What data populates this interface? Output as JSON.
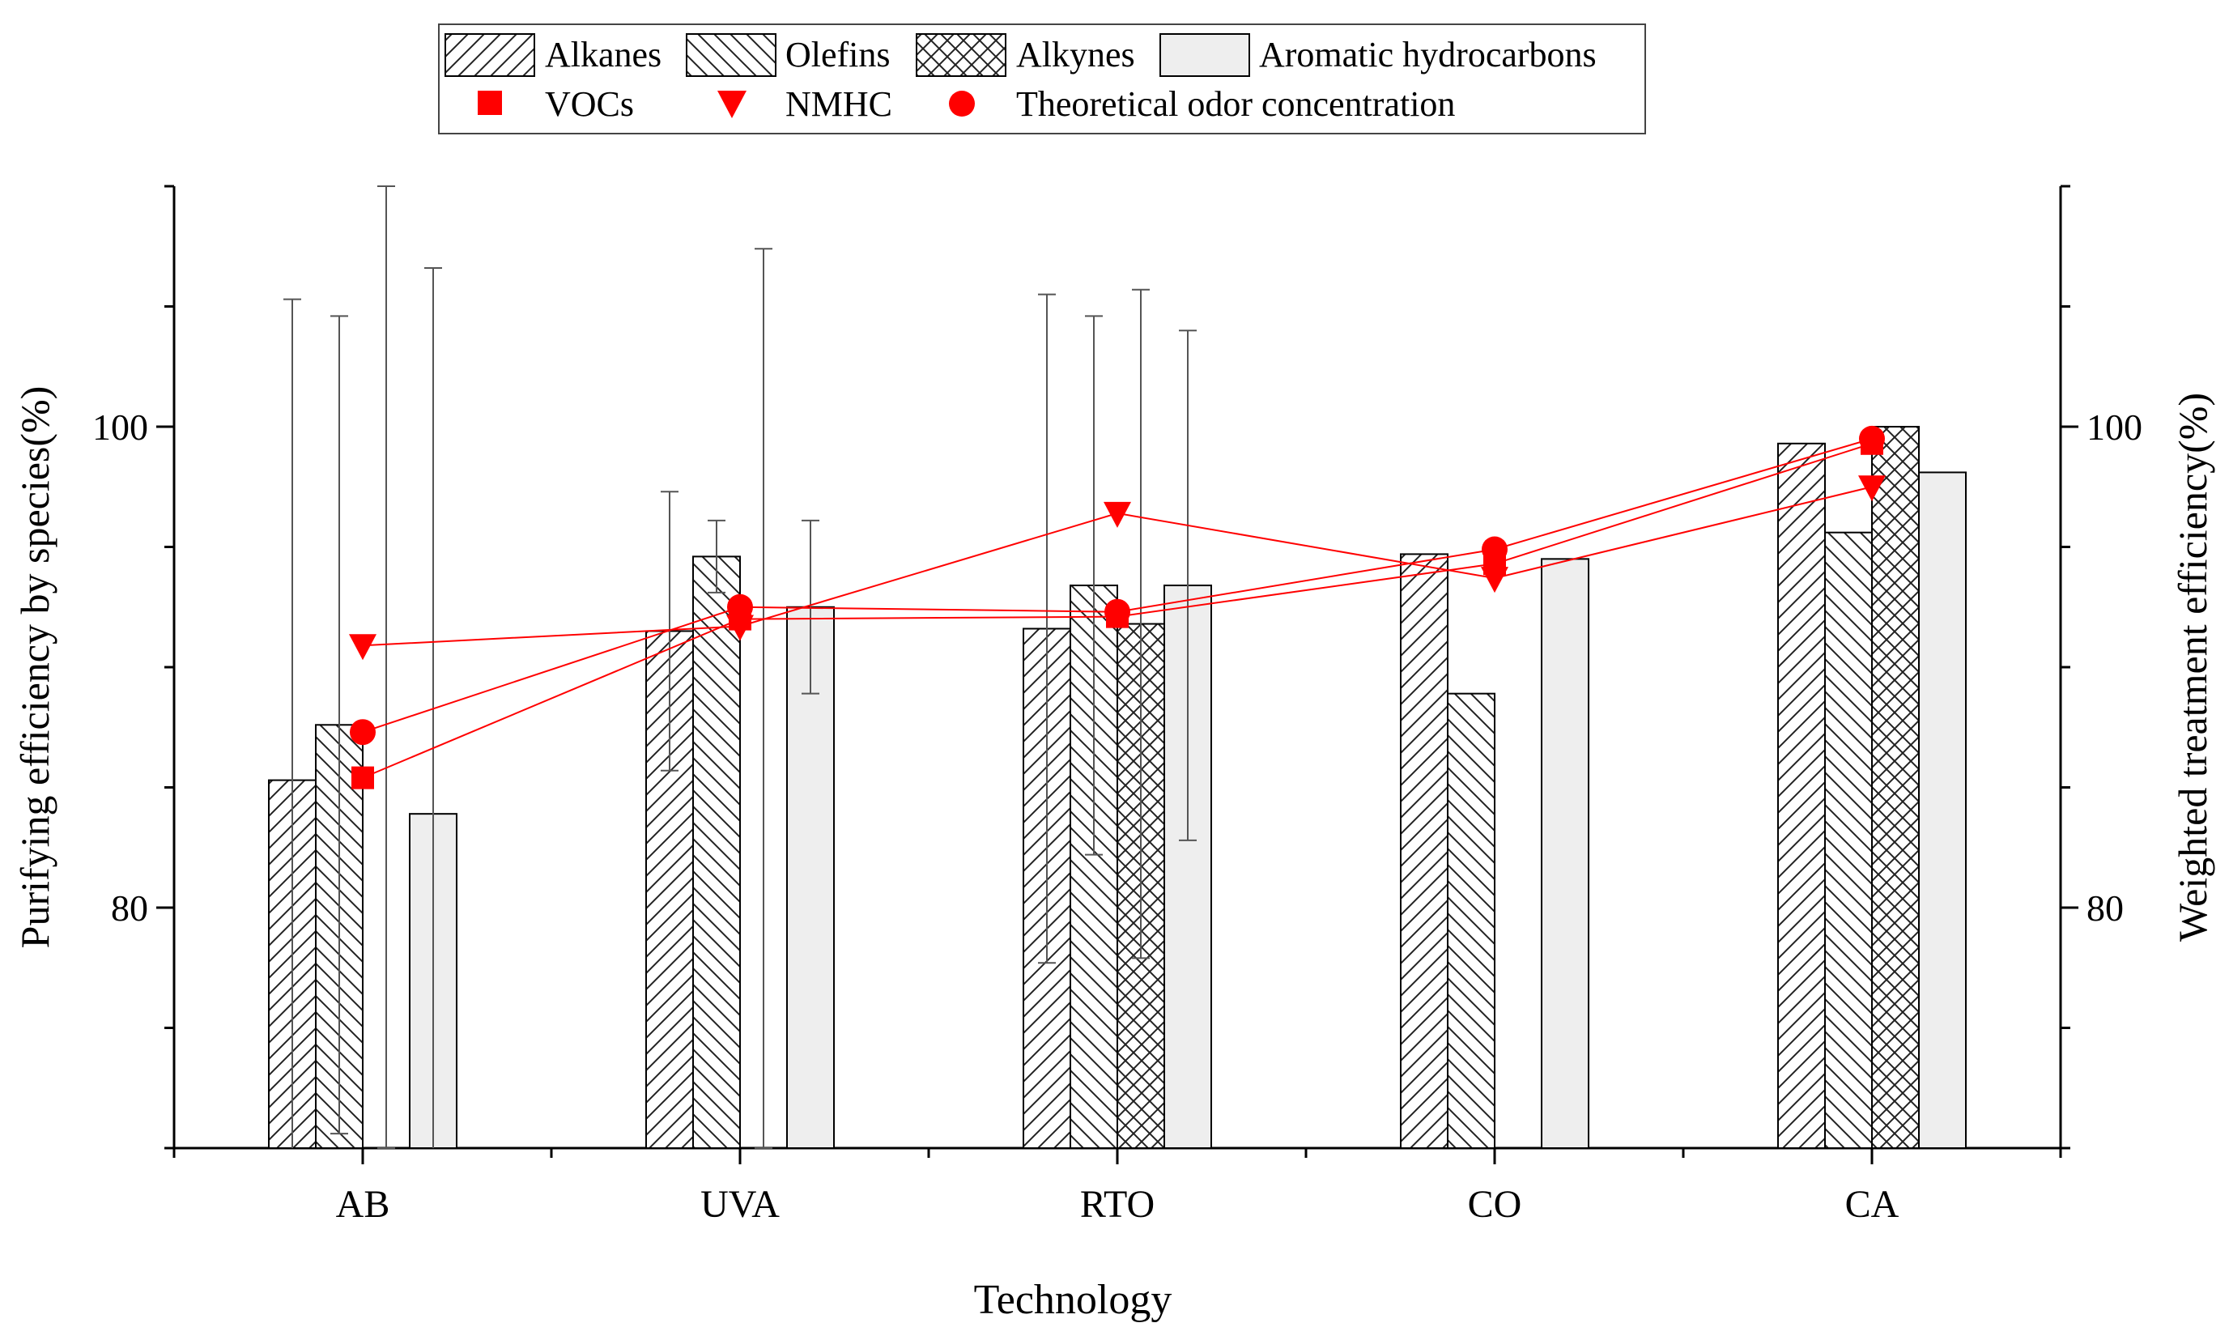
{
  "chart_data": {
    "type": "bar",
    "xlabel": "Technology",
    "ylabel": "Purifying efficiency by species(%)",
    "y2label": "Weighted treatment efficiency(%)",
    "ylim": [
      70,
      110
    ],
    "y2lim": [
      70,
      110
    ],
    "yticks": [
      80,
      100
    ],
    "y2ticks": [
      80,
      100
    ],
    "categories": [
      "AB",
      "UVA",
      "RTO",
      "CO",
      "CA"
    ],
    "bar_series": [
      {
        "name": "Alkanes",
        "pattern": "forward-hatch",
        "values": [
          85.3,
          91.5,
          91.6,
          94.7,
          99.3
        ],
        "errors": [
          20.0,
          5.8,
          13.9,
          null,
          null
        ]
      },
      {
        "name": "Olefins",
        "pattern": "back-hatch",
        "values": [
          87.6,
          94.6,
          93.4,
          88.9,
          95.6
        ],
        "errors": [
          17.0,
          1.5,
          11.2,
          null,
          null
        ]
      },
      {
        "name": "Alkynes",
        "pattern": "cross-hatch",
        "values": [
          null,
          null,
          91.8,
          null,
          100.0
        ],
        "errors": [
          null,
          null,
          13.9,
          null,
          null
        ]
      },
      {
        "name": "Aromatic hydrocarbons",
        "pattern": "solid-light-gray",
        "values": [
          83.9,
          92.5,
          93.4,
          94.5,
          98.1
        ],
        "errors": [
          22.7,
          3.6,
          10.6,
          null,
          null
        ]
      }
    ],
    "errorbar_extra": [
      {
        "category": "AB",
        "position": "alkynes-slot",
        "low": 70,
        "high": 110
      },
      {
        "category": "UVA",
        "position": "alkynes-slot",
        "low": 70,
        "high": 107.4
      }
    ],
    "line_series": [
      {
        "name": "VOCs",
        "marker": "square",
        "values": [
          85.4,
          92.0,
          92.1,
          94.3,
          99.3
        ]
      },
      {
        "name": "NMHC",
        "marker": "triangle-down",
        "values": [
          90.9,
          91.7,
          96.4,
          93.7,
          97.5
        ]
      },
      {
        "name": "Theoretical odor concentration",
        "marker": "circle",
        "values": [
          87.3,
          92.5,
          92.3,
          94.9,
          99.5
        ]
      }
    ],
    "legend": {
      "row1": [
        "Alkanes",
        "Olefins",
        "Alkynes",
        "Aromatic hydrocarbons"
      ],
      "row2": [
        "VOCs",
        "NMHC",
        "Theoretical odor concentration"
      ]
    },
    "legend_position": "top-center",
    "colors": {
      "line": "#ff0000",
      "bar_stroke": "#000000",
      "bar_fill_solid": "#eeeeee",
      "hatch": "#222222",
      "errorbar": "#555555"
    },
    "grid": false
  }
}
